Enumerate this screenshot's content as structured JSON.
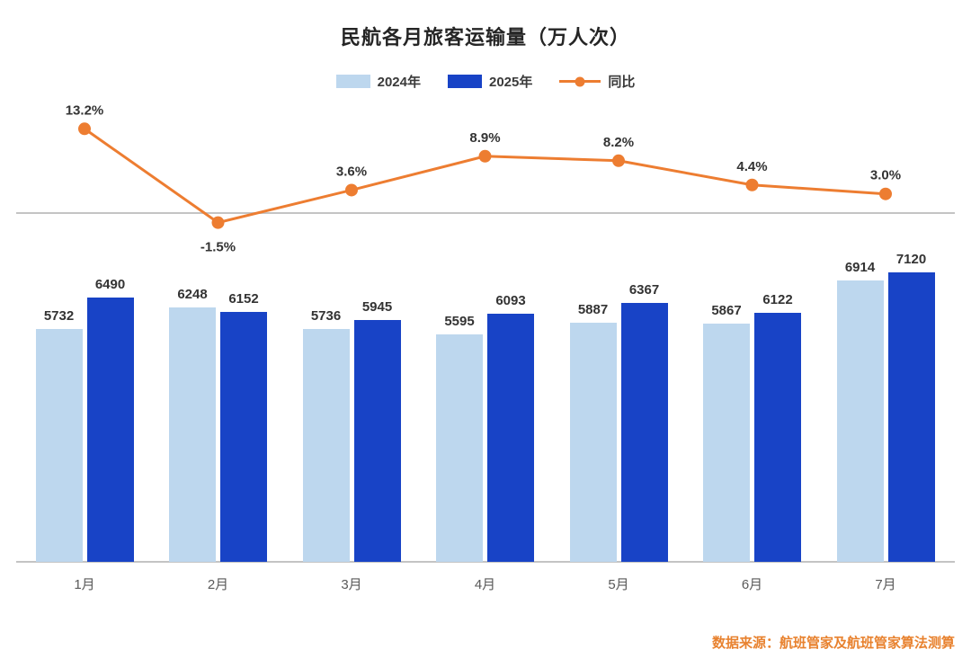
{
  "chart_data": {
    "type": "bar",
    "title": "民航各月旅客运输量（万人次）",
    "categories": [
      "1月",
      "2月",
      "3月",
      "4月",
      "5月",
      "6月",
      "7月"
    ],
    "series": [
      {
        "name": "2024年",
        "color": "#BDD7EE",
        "values": [
          5732,
          6248,
          5736,
          5595,
          5887,
          5867,
          6914
        ]
      },
      {
        "name": "2025年",
        "color": "#1843C6",
        "values": [
          6490,
          6152,
          5945,
          6093,
          6367,
          6122,
          7120
        ]
      }
    ],
    "line_series": {
      "name": "同比",
      "color": "#ED7D31",
      "values": [
        13.2,
        -1.5,
        3.6,
        8.9,
        8.2,
        4.4,
        3.0
      ],
      "labels": [
        "13.2%",
        "-1.5%",
        "3.6%",
        "8.9%",
        "8.2%",
        "4.4%",
        "3.0%"
      ]
    },
    "legend_position": "top",
    "grid": false,
    "xlabel": "",
    "ylabel": ""
  },
  "colors": {
    "axis_line": "#C4C4C4",
    "footer_text": "#E8822F"
  },
  "footer": {
    "text": "数据来源：航班管家及航班管家算法测算"
  }
}
